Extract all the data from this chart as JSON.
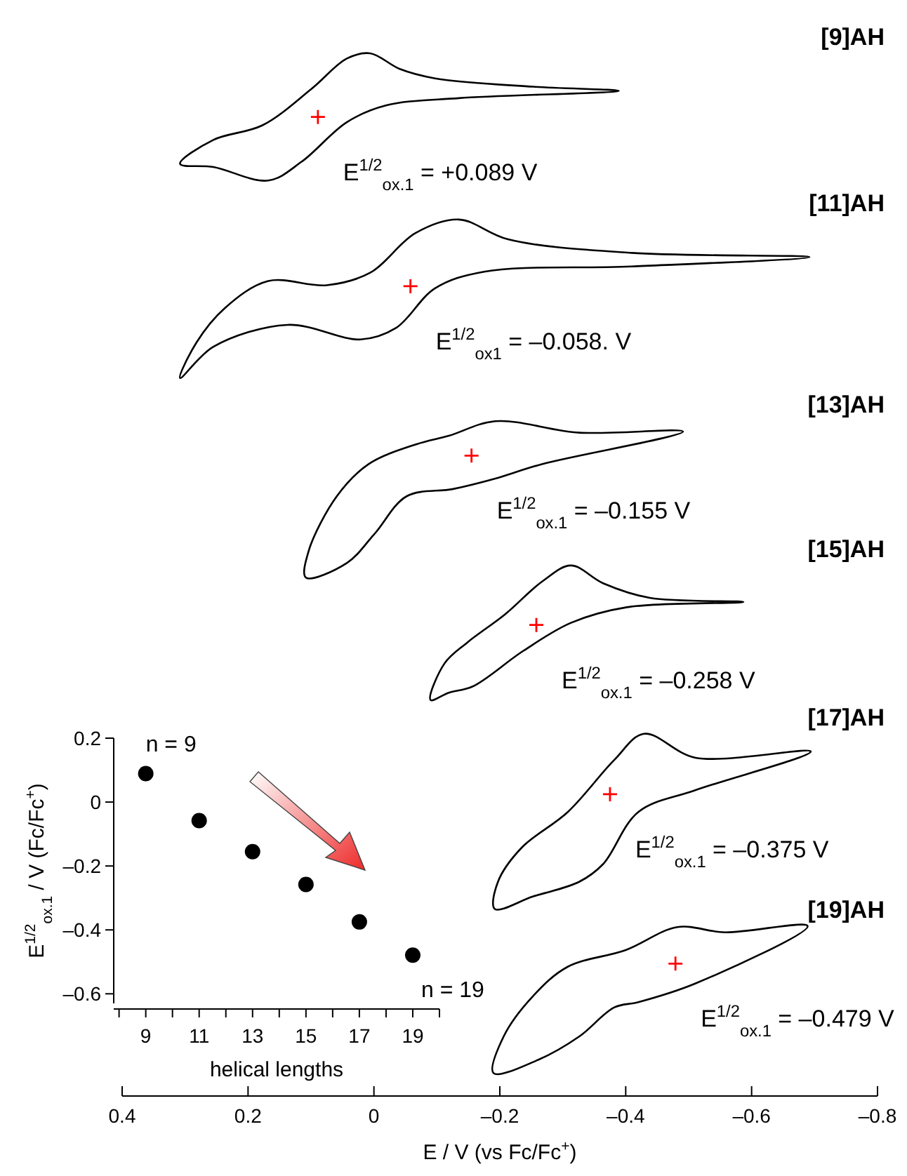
{
  "chart_data": [
    {
      "type": "scatter",
      "orientation": "horizontal",
      "marker": "cross",
      "color": "#ff0000",
      "categories": [
        "[9]AH",
        "[11]AH",
        "[13]AH",
        "[15]AH",
        "[17]AH",
        "[19]AH"
      ],
      "values": [
        0.089,
        -0.058,
        -0.155,
        -0.258,
        -0.375,
        -0.479
      ],
      "xlabel": "E / V (vs Fc/Fc$^{+}$)",
      "xlim": [
        0.4,
        -0.8
      ],
      "xticks": [
        0.4,
        0.2,
        0,
        {
          "value": -0.2,
          "label": "–0.2"
        },
        {
          "value": -0.4,
          "label": "–0.4"
        },
        {
          "value": -0.6,
          "label": "–0.6"
        },
        {
          "value": -0.8,
          "label": "–0.8"
        }
      ],
      "annotations": [
        "E$^{1/2}$$_{ox.1}$ = +0.089 V",
        "E$^{1/2}$$_{ox1}$ = –0.058. V",
        "E$^{1/2}$$_{ox.1}$ = –0.155 V",
        "E$^{1/2}$$_{ox.1}$ = –0.258 V",
        "E$^{1/2}$$_{ox.1}$ = –0.375 V",
        "E$^{1/2}$$_{ox.1}$ = –0.479 V"
      ]
    },
    {
      "type": "scatter",
      "xlabel": "helical lengths",
      "ylabel": "E$^{1/2}$$_{ox.1}$ / V (Fc/Fc$^{+}$)",
      "marker": "circle",
      "color": "#000000",
      "grid": false,
      "x": [
        9,
        11,
        13,
        15,
        17,
        19
      ],
      "values": [
        0.089,
        -0.058,
        -0.155,
        -0.258,
        -0.375,
        -0.479
      ],
      "xlim": [
        7.8,
        20
      ],
      "xticks": [
        {
          "value": 8,
          "label": null
        },
        9,
        {
          "value": 10,
          "label": null
        },
        11,
        {
          "value": 12,
          "label": null
        },
        13,
        {
          "value": 14,
          "label": null
        },
        15,
        {
          "value": 16,
          "label": null
        },
        17,
        {
          "value": 18,
          "label": null
        },
        19,
        {
          "value": 20,
          "label": null
        }
      ],
      "ylim": [
        -0.63,
        0.2
      ],
      "yticks": [
        0.2,
        0,
        {
          "value": -0.2,
          "label": "–0.2"
        },
        {
          "value": -0.4,
          "label": "–0.4"
        },
        {
          "value": -0.6,
          "label": "–0.6"
        }
      ],
      "annotations": [
        {
          "text": "n = 9",
          "x": 9,
          "y": 0.089
        },
        {
          "text": "n = 19",
          "x": 19,
          "y": -0.479
        }
      ]
    }
  ]
}
